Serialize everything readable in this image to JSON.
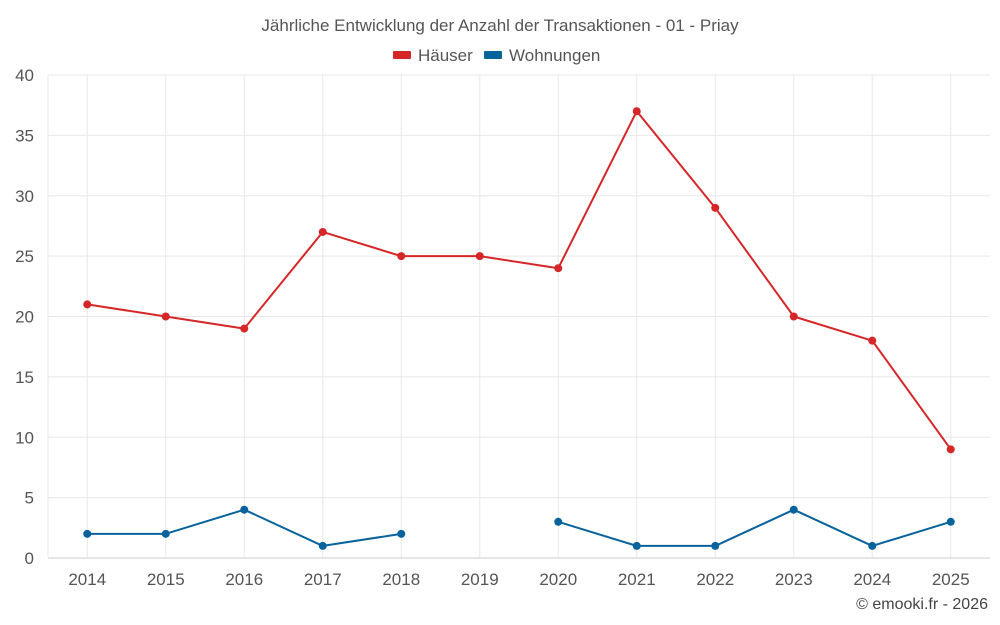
{
  "chart_data": {
    "type": "line",
    "title": "Jährliche Entwicklung der Anzahl der Transaktionen - 01 - Priay",
    "categories": [
      "2014",
      "2015",
      "2016",
      "2017",
      "2018",
      "2019",
      "2020",
      "2021",
      "2022",
      "2023",
      "2024",
      "2025"
    ],
    "ylim": [
      0,
      40
    ],
    "yticks": [
      0,
      5,
      10,
      15,
      20,
      25,
      30,
      35,
      40
    ],
    "grid": true,
    "legend_position": "top-center",
    "series": [
      {
        "name": "Häuser",
        "color": "#d62728",
        "values": [
          21,
          20,
          19,
          27,
          25,
          25,
          24,
          37,
          29,
          20,
          18,
          9
        ]
      },
      {
        "name": "Wohnungen",
        "color": "#08639c",
        "values": [
          2,
          2,
          4,
          1,
          2,
          null,
          3,
          1,
          1,
          4,
          1,
          3
        ]
      }
    ],
    "credit": "© emooki.fr - 2026"
  }
}
